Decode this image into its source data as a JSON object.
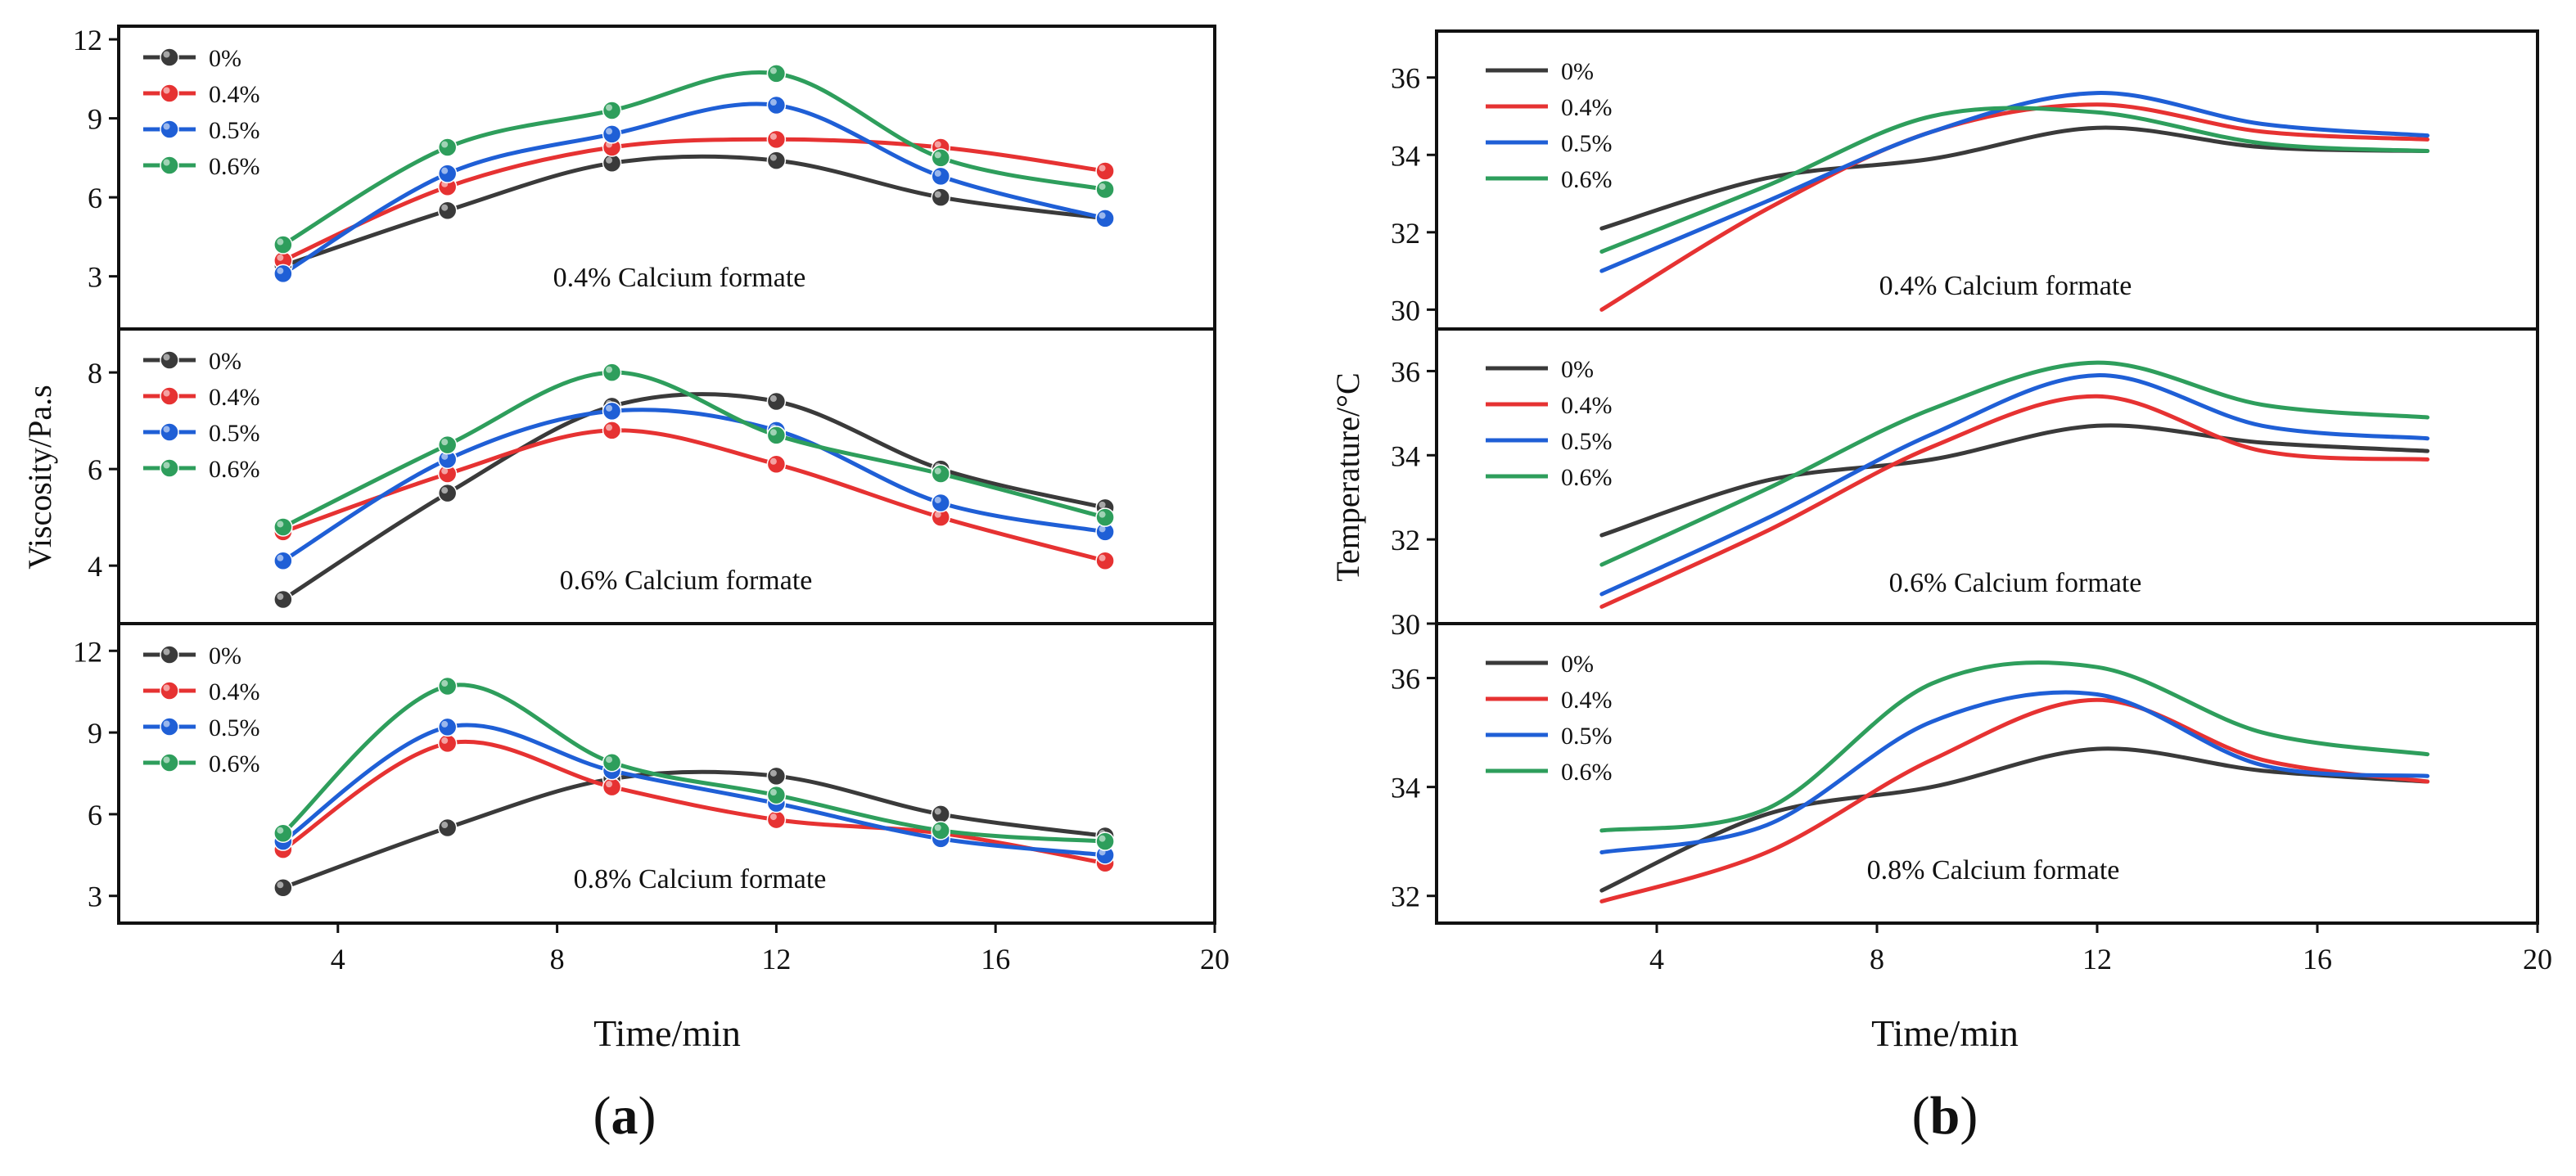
{
  "figure": {
    "colors": {
      "s0": "#3a3a3a",
      "s04": "#e63232",
      "s05": "#1f5fd6",
      "s06": "#2e9e5c"
    }
  },
  "panel_a": {
    "label": "a",
    "ylabel": "Viscosity/Pa.s",
    "xlabel": "Time/min",
    "xlim": [
      0,
      20
    ],
    "xticks": [
      "4",
      "8",
      "12",
      "16",
      "20"
    ]
  },
  "panel_b": {
    "label": "b",
    "ylabel": "Temperature/°C",
    "xlabel": "Time/min",
    "xlim": [
      0,
      20
    ],
    "xticks": [
      "4",
      "8",
      "12",
      "16",
      "20"
    ]
  },
  "chart_data": [
    {
      "id": "a1",
      "type": "line",
      "markers": true,
      "annotation": "0.4% Calcium formate",
      "xlabel": "Time/min",
      "ylabel": "Viscosity/Pa.s",
      "xlim": [
        0,
        20
      ],
      "ylim": [
        1,
        12.5
      ],
      "yticks": [
        3,
        6,
        9,
        12
      ],
      "x": [
        3,
        6,
        9,
        12,
        15,
        18
      ],
      "series": [
        {
          "name": "0%",
          "color": "#3a3a3a",
          "values": [
            3.4,
            5.5,
            7.3,
            7.4,
            6.0,
            5.2
          ]
        },
        {
          "name": "0.4%",
          "color": "#e63232",
          "values": [
            3.6,
            6.4,
            7.9,
            8.2,
            7.9,
            7.0
          ]
        },
        {
          "name": "0.5%",
          "color": "#1f5fd6",
          "values": [
            3.1,
            6.9,
            8.4,
            9.5,
            6.8,
            5.2
          ]
        },
        {
          "name": "0.6%",
          "color": "#2e9e5c",
          "values": [
            4.2,
            7.9,
            9.3,
            10.7,
            7.5,
            6.3
          ]
        }
      ]
    },
    {
      "id": "a2",
      "type": "line",
      "markers": true,
      "annotation": "0.6% Calcium formate",
      "xlabel": "Time/min",
      "ylabel": "Viscosity/Pa.s",
      "xlim": [
        0,
        20
      ],
      "ylim": [
        2.8,
        8.9
      ],
      "yticks": [
        4,
        6,
        8
      ],
      "x": [
        3,
        6,
        9,
        12,
        15,
        18
      ],
      "series": [
        {
          "name": "0%",
          "color": "#3a3a3a",
          "values": [
            3.3,
            5.5,
            7.3,
            7.4,
            6.0,
            5.2
          ]
        },
        {
          "name": "0.4%",
          "color": "#e63232",
          "values": [
            4.7,
            5.9,
            6.8,
            6.1,
            5.0,
            4.1
          ]
        },
        {
          "name": "0.5%",
          "color": "#1f5fd6",
          "values": [
            4.1,
            6.2,
            7.2,
            6.8,
            5.3,
            4.7
          ]
        },
        {
          "name": "0.6%",
          "color": "#2e9e5c",
          "values": [
            4.8,
            6.5,
            8.0,
            6.7,
            5.9,
            5.0
          ]
        }
      ]
    },
    {
      "id": "a3",
      "type": "line",
      "markers": true,
      "annotation": "0.8% Calcium formate",
      "xlabel": "Time/min",
      "ylabel": "Viscosity/Pa.s",
      "xlim": [
        0,
        20
      ],
      "ylim": [
        2,
        13
      ],
      "yticks": [
        3,
        6,
        9,
        12
      ],
      "x": [
        3,
        6,
        9,
        12,
        15,
        18
      ],
      "series": [
        {
          "name": "0%",
          "color": "#3a3a3a",
          "values": [
            3.3,
            5.5,
            7.3,
            7.4,
            6.0,
            5.2
          ]
        },
        {
          "name": "0.4%",
          "color": "#e63232",
          "values": [
            4.7,
            8.6,
            7.0,
            5.8,
            5.3,
            4.2
          ]
        },
        {
          "name": "0.5%",
          "color": "#1f5fd6",
          "values": [
            5.0,
            9.2,
            7.6,
            6.4,
            5.1,
            4.5
          ]
        },
        {
          "name": "0.6%",
          "color": "#2e9e5c",
          "values": [
            5.3,
            10.7,
            7.9,
            6.7,
            5.4,
            5.0
          ]
        }
      ]
    },
    {
      "id": "b1",
      "type": "line",
      "markers": false,
      "annotation": "0.4% Calcium formate",
      "xlabel": "Time/min",
      "ylabel": "Temperature/°C",
      "xlim": [
        0,
        20
      ],
      "ylim": [
        29.5,
        37.2
      ],
      "yticks": [
        30,
        32,
        34,
        36
      ],
      "x": [
        3,
        6,
        9,
        12,
        15,
        18
      ],
      "series": [
        {
          "name": "0%",
          "color": "#3a3a3a",
          "values": [
            32.1,
            33.4,
            33.9,
            34.7,
            34.2,
            34.1
          ]
        },
        {
          "name": "0.4%",
          "color": "#e63232",
          "values": [
            30.0,
            32.6,
            34.6,
            35.3,
            34.6,
            34.4
          ]
        },
        {
          "name": "0.5%",
          "color": "#1f5fd6",
          "values": [
            31.0,
            32.8,
            34.6,
            35.6,
            34.8,
            34.5
          ]
        },
        {
          "name": "0.6%",
          "color": "#2e9e5c",
          "values": [
            31.5,
            33.2,
            35.0,
            35.1,
            34.3,
            34.1
          ]
        }
      ]
    },
    {
      "id": "b2",
      "type": "line",
      "markers": false,
      "annotation": "0.6% Calcium formate",
      "xlabel": "Time/min",
      "ylabel": "Temperature/°C",
      "xlim": [
        0,
        20
      ],
      "ylim": [
        30,
        37
      ],
      "yticks": [
        30,
        32,
        34,
        36
      ],
      "x": [
        3,
        6,
        9,
        12,
        15,
        18
      ],
      "series": [
        {
          "name": "0%",
          "color": "#3a3a3a",
          "values": [
            32.1,
            33.4,
            33.9,
            34.7,
            34.3,
            34.1
          ]
        },
        {
          "name": "0.4%",
          "color": "#e63232",
          "values": [
            30.4,
            32.2,
            34.2,
            35.4,
            34.1,
            33.9
          ]
        },
        {
          "name": "0.5%",
          "color": "#1f5fd6",
          "values": [
            30.7,
            32.5,
            34.5,
            35.9,
            34.7,
            34.4
          ]
        },
        {
          "name": "0.6%",
          "color": "#2e9e5c",
          "values": [
            31.4,
            33.2,
            35.1,
            36.2,
            35.2,
            34.9
          ]
        }
      ]
    },
    {
      "id": "b3",
      "type": "line",
      "markers": false,
      "annotation": "0.8%  Calcium formate",
      "xlabel": "Time/min",
      "ylabel": "Temperature/°C",
      "xlim": [
        0,
        20
      ],
      "ylim": [
        31.5,
        37
      ],
      "yticks": [
        32,
        34,
        36
      ],
      "x": [
        3,
        6,
        9,
        12,
        15,
        18
      ],
      "series": [
        {
          "name": "0%",
          "color": "#3a3a3a",
          "values": [
            32.1,
            33.5,
            34.0,
            34.7,
            34.3,
            34.1
          ]
        },
        {
          "name": "0.4%",
          "color": "#e63232",
          "values": [
            31.9,
            32.8,
            34.5,
            35.6,
            34.5,
            34.1
          ]
        },
        {
          "name": "0.5%",
          "color": "#1f5fd6",
          "values": [
            32.8,
            33.3,
            35.2,
            35.7,
            34.4,
            34.2
          ]
        },
        {
          "name": "0.6%",
          "color": "#2e9e5c",
          "values": [
            33.2,
            33.6,
            35.9,
            36.2,
            35.0,
            34.6
          ]
        }
      ]
    }
  ]
}
